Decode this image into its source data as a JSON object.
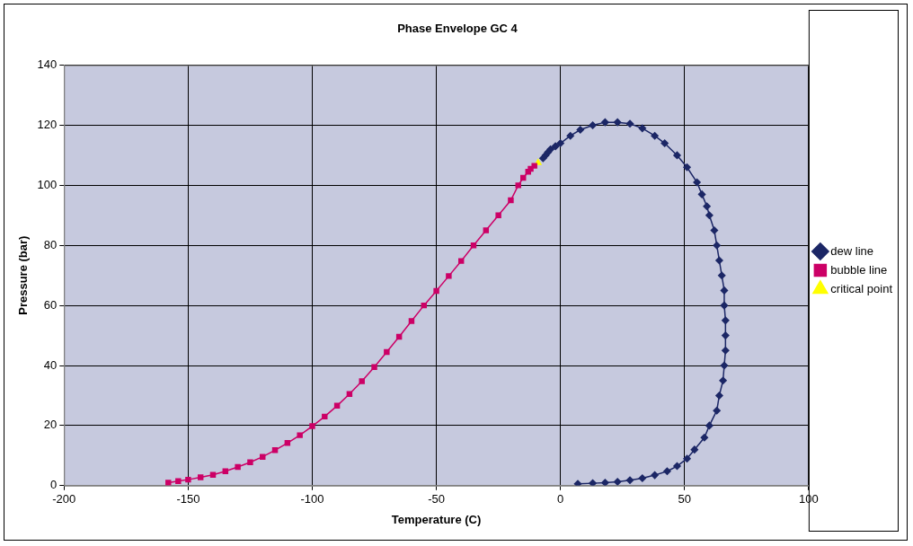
{
  "chart_data": {
    "type": "scatter",
    "title": "Phase Envelope GC 4",
    "x_label": "Temperature (C)",
    "y_label": "Pressure (bar)",
    "xlim": [
      -200,
      100
    ],
    "xticks": [
      -200,
      -150,
      -100,
      -50,
      0,
      50,
      100
    ],
    "ylim": [
      0,
      140
    ],
    "yticks": [
      0,
      20,
      40,
      60,
      80,
      100,
      120,
      140
    ],
    "grid": true,
    "legend": "right",
    "series": [
      {
        "name": "dew line",
        "color": "#1c2766",
        "marker": "diamond",
        "line_style": "solid",
        "x": [
          7,
          13,
          18,
          23,
          28,
          33,
          38,
          43,
          47,
          51,
          54,
          58,
          60,
          63,
          64,
          65.5,
          66,
          66.5,
          66.5,
          66.5,
          66,
          66,
          65,
          64,
          63,
          62,
          60,
          59,
          57,
          55,
          51,
          47,
          42,
          38,
          33,
          28,
          23,
          18,
          13,
          8,
          4,
          0,
          -2,
          -4,
          -5,
          -6,
          -7
        ],
        "values": [
          0.6,
          0.8,
          1,
          1.3,
          1.8,
          2.5,
          3.5,
          4.8,
          6.5,
          9,
          12,
          16,
          20,
          25,
          30,
          35,
          40,
          45,
          50,
          55,
          60,
          65,
          70,
          75,
          80,
          85,
          90,
          93,
          97,
          101,
          106,
          110,
          114,
          116.5,
          119,
          120.5,
          121,
          121,
          120,
          118.5,
          116.5,
          114,
          113,
          112,
          111,
          110,
          109
        ]
      },
      {
        "name": "bubble line",
        "color": "#cc0066",
        "marker": "square",
        "line_style": "solid",
        "x": [
          -158,
          -154,
          -150,
          -145,
          -140,
          -135,
          -130,
          -125,
          -120,
          -115,
          -110,
          -105,
          -100,
          -95,
          -90,
          -85,
          -80,
          -75,
          -70,
          -65,
          -60,
          -55,
          -50,
          -45,
          -40,
          -35,
          -30,
          -25,
          -20,
          -17,
          -15,
          -13,
          -12,
          -10.5
        ],
        "values": [
          1,
          1.5,
          2,
          2.8,
          3.6,
          4.8,
          6.2,
          7.8,
          9.6,
          11.8,
          14.2,
          16.8,
          19.8,
          23,
          26.6,
          30.5,
          34.8,
          39.5,
          44.5,
          49.6,
          54.8,
          60,
          64.8,
          69.8,
          74.8,
          80,
          85,
          90,
          95,
          100,
          102.5,
          104.5,
          105.5,
          106.5
        ]
      },
      {
        "name": "critical point",
        "color": "#ffff00",
        "marker": "triangle",
        "line_style": "solid",
        "x": [
          -9
        ],
        "values": [
          107.5
        ]
      }
    ]
  }
}
